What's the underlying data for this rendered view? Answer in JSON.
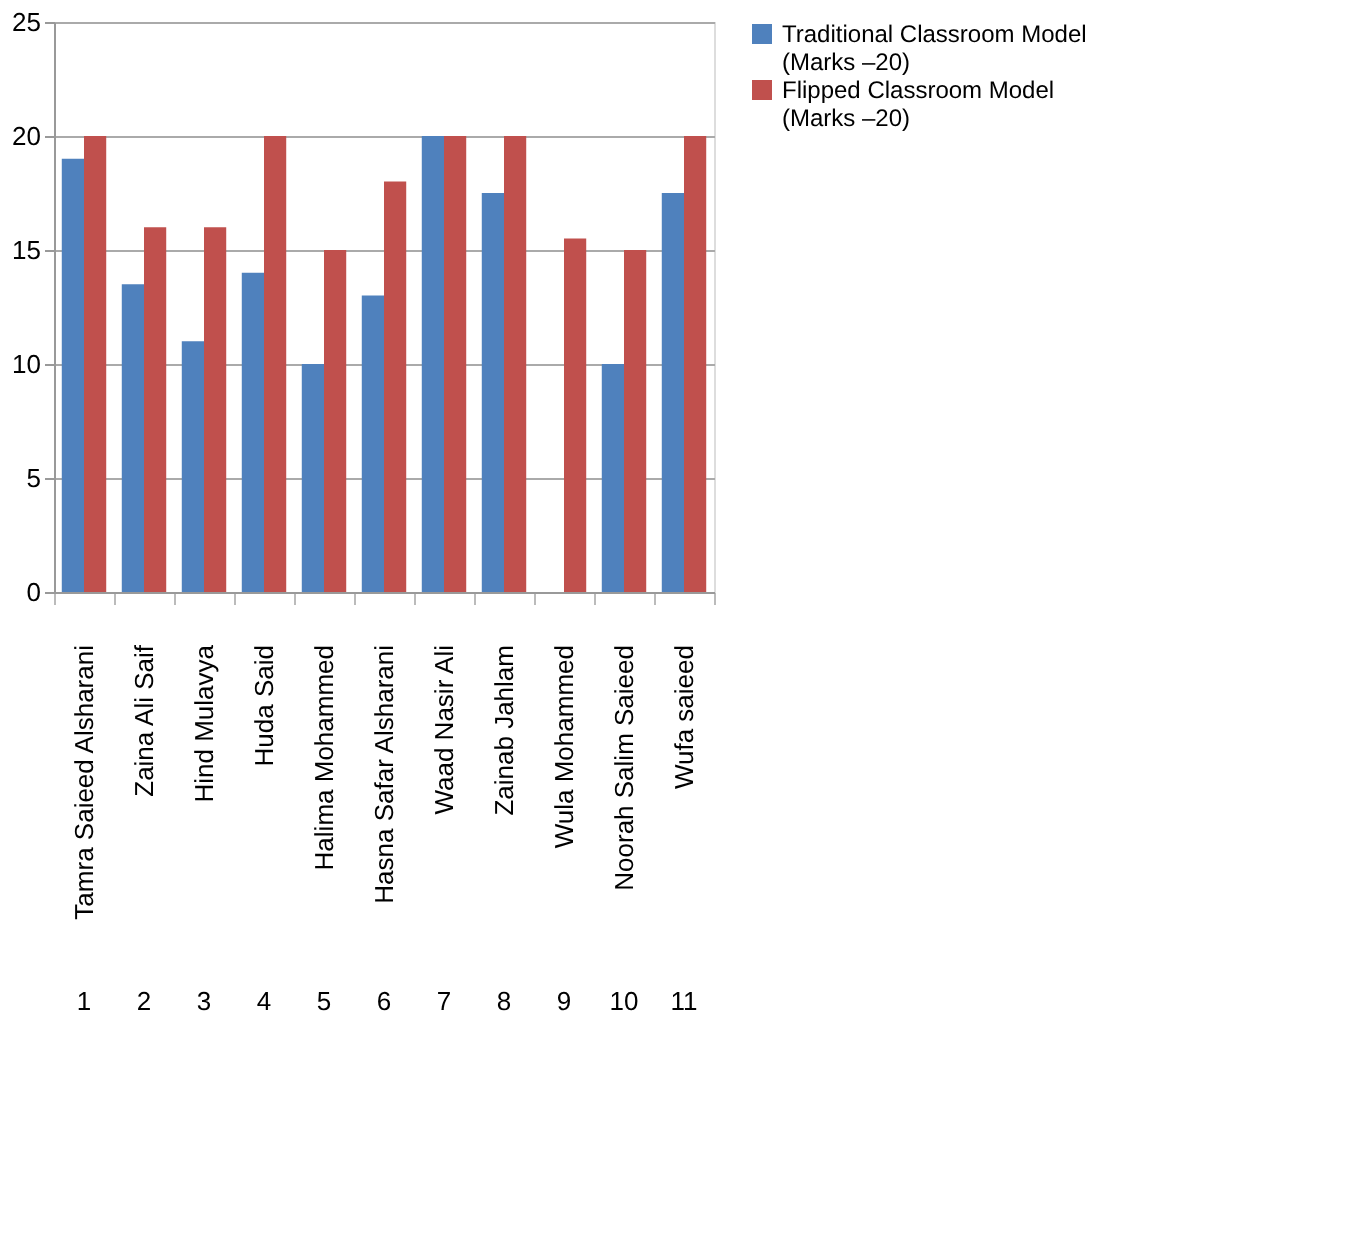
{
  "chart_data": {
    "type": "bar",
    "categories": [
      "Tamra Saieed Alsharani",
      "Zaina Ali Saif",
      "Hind Mulavya",
      "Huda Said",
      "Halima Mohammed",
      "Hasna Safar Alsharani",
      "Waad Nasir Ali",
      "Zainab Jahlam",
      "Wula Mohammed",
      "Noorah Salim Saieed",
      "Wufa saieed"
    ],
    "series": [
      {
        "name": "Traditional Classroom Model (Marks –20)",
        "color": "#4f81bd",
        "values": [
          19,
          13.5,
          11,
          14,
          10,
          13,
          20,
          17.5,
          null,
          10,
          17.5
        ]
      },
      {
        "name": "Flipped Classroom Model (Marks –20)",
        "color": "#c0504d",
        "values": [
          20,
          16,
          16,
          20,
          15,
          18,
          20,
          20,
          15.5,
          15,
          20
        ]
      }
    ],
    "annotations": [
      "1",
      "2",
      "3",
      "4",
      "5",
      "6",
      "7",
      "8",
      "9",
      "10",
      "11"
    ],
    "ylim": [
      0,
      25
    ],
    "yticks": [
      0,
      5,
      10,
      15,
      20,
      25
    ],
    "grid": "y",
    "legend": "right"
  }
}
